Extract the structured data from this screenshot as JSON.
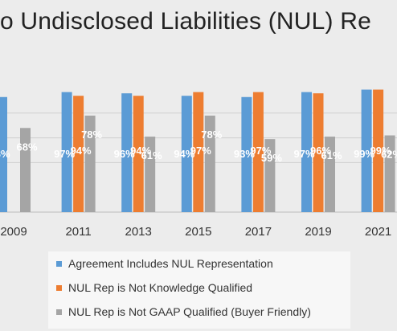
{
  "chart_data": {
    "type": "bar",
    "title": "o Undisclosed Liabilities (NUL) Re",
    "categories": [
      "2009",
      "2011",
      "2013",
      "2015",
      "2017",
      "2019",
      "2021"
    ],
    "series": [
      {
        "name": "Agreement Includes NUL Representation",
        "color": "#5b9bd5",
        "values": [
          93,
          97,
          96,
          94,
          93,
          97,
          99
        ],
        "labels": [
          "93%",
          "97%",
          "96%",
          "94%",
          "93%",
          "97%",
          "99%"
        ]
      },
      {
        "name": "NUL Rep is Not Knowledge Qualified",
        "color": "#ed7d31",
        "values": [
          null,
          94,
          94,
          97,
          97,
          96,
          99
        ],
        "labels": [
          "",
          "94%",
          "94%",
          "97%",
          "97%",
          "96%",
          "99%"
        ]
      },
      {
        "name": "NUL Rep is Not GAAP Qualified (Buyer Friendly)",
        "color": "#a5a5a5",
        "values": [
          68,
          78,
          61,
          78,
          59,
          61,
          62
        ],
        "labels": [
          "68%",
          "78%",
          "61%",
          "78%",
          "59%",
          "61%",
          "62%"
        ]
      }
    ],
    "ylim": [
      0,
      100
    ],
    "grid": true,
    "legend_position": "bottom"
  }
}
